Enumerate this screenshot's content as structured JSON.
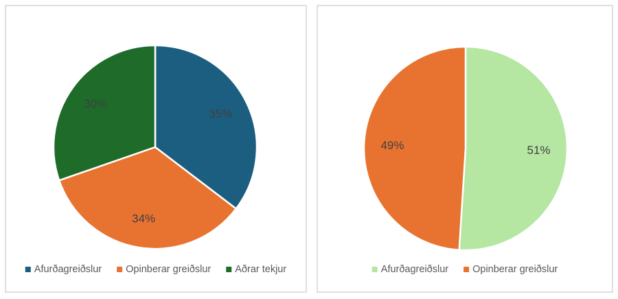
{
  "chart_data": [
    {
      "type": "pie",
      "categories": [
        "Afurðagreiðslur",
        "Opinberar greiðslur",
        "Aðrar tekjur"
      ],
      "values": [
        35,
        34,
        30
      ],
      "value_labels": [
        "35%",
        "34%",
        "30%"
      ],
      "colors": [
        "#1b5e80",
        "#e87331",
        "#1e6b2a"
      ],
      "legend": "bottom"
    },
    {
      "type": "pie",
      "categories": [
        "Afurðagreiðslur",
        "Opinberar greiðslur"
      ],
      "values": [
        51,
        49
      ],
      "value_labels": [
        "51%",
        "49%"
      ],
      "colors": [
        "#b5e6a2",
        "#e87331"
      ],
      "legend": "bottom"
    }
  ]
}
